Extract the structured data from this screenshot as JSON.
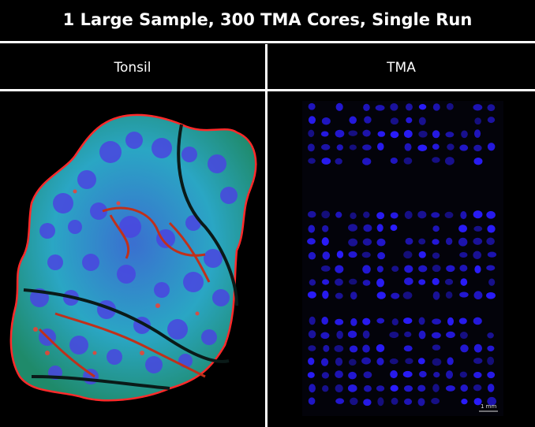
{
  "title": "1 Large Sample, 300 TMA Cores, Single Run",
  "columns": [
    {
      "label": "Tonsil"
    },
    {
      "label": "TMA"
    }
  ],
  "tma": {
    "scale_label": "1 mm",
    "core_color": "#2a1cff",
    "background_color": "#000000"
  },
  "tonsil": {
    "colors": {
      "nuclei": "#4a45e0",
      "epithelium": "#28b8c8",
      "stroma": "#2aa05a",
      "border": "#ff2a2a",
      "crypt": "#c0301a"
    }
  }
}
